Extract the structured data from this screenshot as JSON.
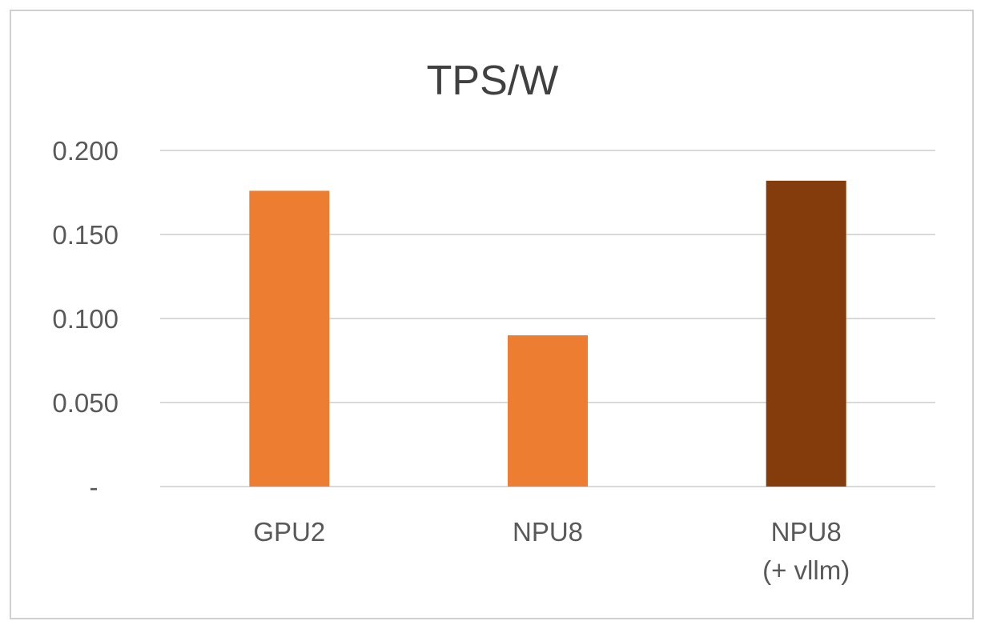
{
  "chart_data": {
    "type": "bar",
    "title": "TPS/W",
    "xlabel": "",
    "ylabel": "",
    "categories": [
      [
        "GPU2"
      ],
      [
        "NPU8"
      ],
      [
        "NPU8",
        "(+ vllm)"
      ]
    ],
    "values": [
      0.176,
      0.09,
      0.182
    ],
    "bar_colors": [
      "#ED7D31",
      "#ED7D31",
      "#843C0C"
    ],
    "ylim": [
      0,
      0.2
    ],
    "yticks": [
      0,
      0.05,
      0.1,
      0.15,
      0.2
    ],
    "ytick_labels": [
      "-",
      "0.050",
      "0.100",
      "0.150",
      "0.200"
    ],
    "grid": true,
    "legend": "none"
  }
}
